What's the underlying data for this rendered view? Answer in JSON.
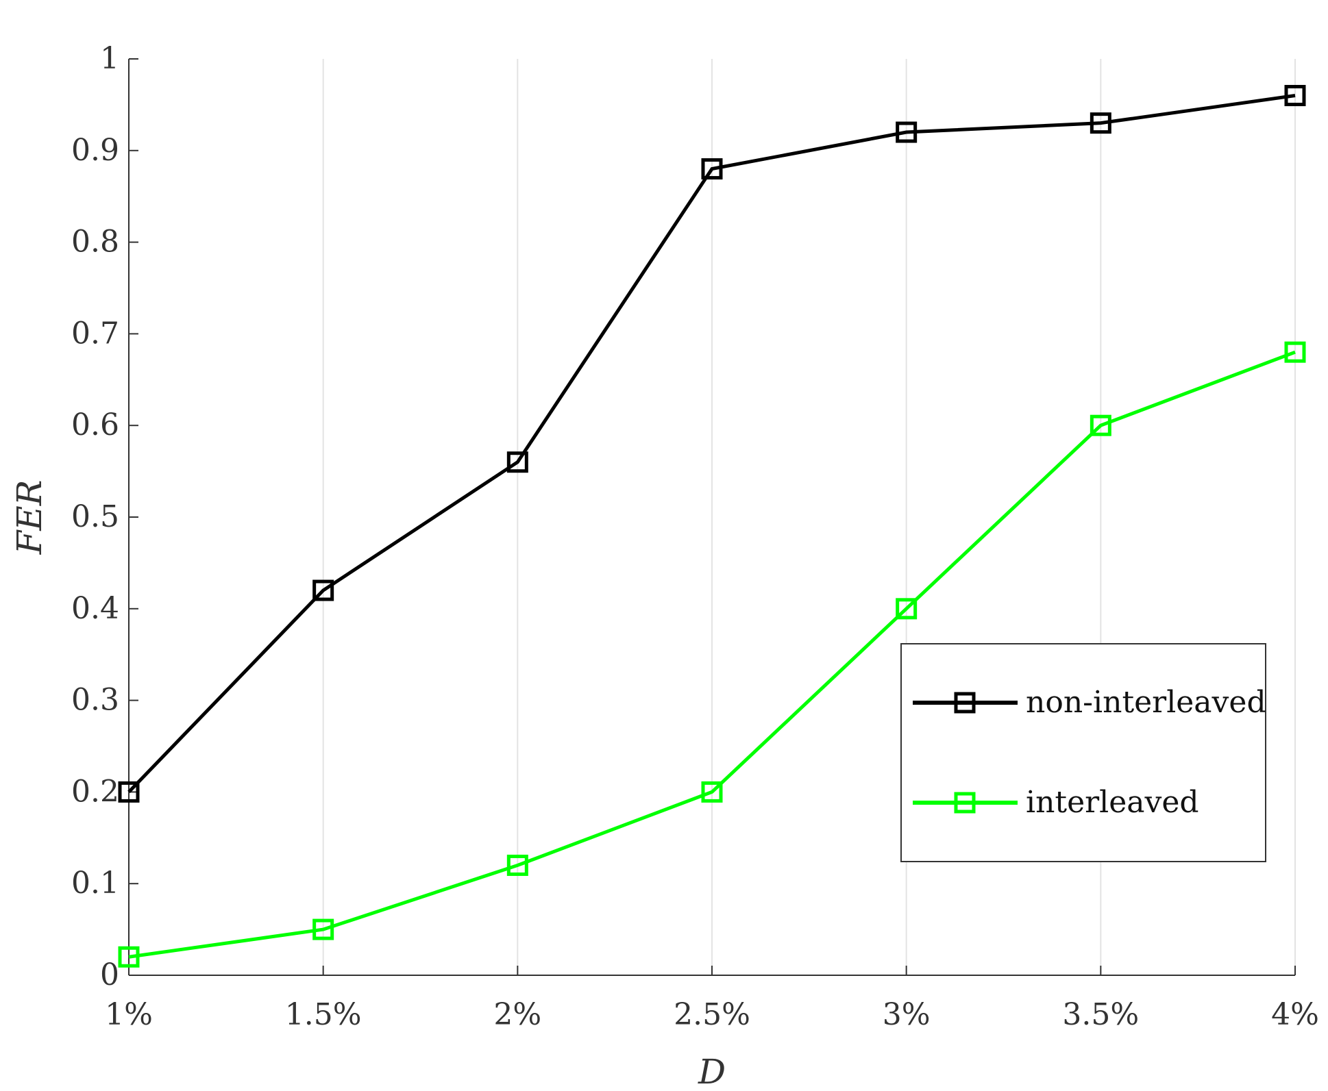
{
  "chart_data": {
    "type": "line",
    "title": "",
    "xlabel": "D",
    "ylabel": "FER",
    "categories": [
      "1%",
      "1.5%",
      "2%",
      "2.5%",
      "3%",
      "3.5%",
      "4%"
    ],
    "yticks": [
      "0",
      "0.1",
      "0.2",
      "0.3",
      "0.4",
      "0.5",
      "0.6",
      "0.7",
      "0.8",
      "0.9",
      "1"
    ],
    "ylim": [
      0,
      1
    ],
    "grid": {
      "vertical": true,
      "horizontal": false
    },
    "legend_position": "lower-right",
    "marker": "square",
    "series": [
      {
        "name": "non-interleaved",
        "color": "#000000",
        "values": [
          0.2,
          0.42,
          0.56,
          0.88,
          0.92,
          0.93,
          0.96
        ]
      },
      {
        "name": "interleaved",
        "color": "#00ff00",
        "values": [
          0.02,
          0.05,
          0.12,
          0.2,
          0.4,
          0.6,
          0.68
        ]
      }
    ]
  }
}
